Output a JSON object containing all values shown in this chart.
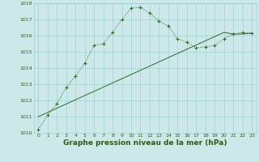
{
  "title": "Graphe pression niveau de la mer (hPa)",
  "x_values": [
    0,
    1,
    2,
    3,
    4,
    5,
    6,
    7,
    8,
    9,
    10,
    11,
    12,
    13,
    14,
    15,
    16,
    17,
    18,
    19,
    20,
    21,
    22,
    23
  ],
  "line1_y": [
    1010.2,
    1011.1,
    1011.8,
    1012.8,
    1013.5,
    1014.3,
    1015.4,
    1015.5,
    1016.2,
    1017.0,
    1017.7,
    1017.75,
    1017.4,
    1016.9,
    1016.6,
    1015.8,
    1015.6,
    1015.25,
    1015.3,
    1015.4,
    1015.8,
    1016.1,
    1016.2,
    1016.15
  ],
  "line2_y": [
    1011.0,
    1011.26,
    1011.52,
    1011.78,
    1012.04,
    1012.3,
    1012.56,
    1012.82,
    1013.08,
    1013.34,
    1013.6,
    1013.86,
    1014.12,
    1014.38,
    1014.64,
    1014.9,
    1015.16,
    1015.42,
    1015.68,
    1015.94,
    1016.2,
    1016.1,
    1016.1,
    1016.15
  ],
  "line_color": "#2d6a2d",
  "bg_color": "#cce8e8",
  "grid_color": "#99cccc",
  "text_color": "#2d5a1b",
  "ylim": [
    1010,
    1018
  ],
  "xlim": [
    -0.5,
    23.5
  ],
  "yticks": [
    1010,
    1011,
    1012,
    1013,
    1014,
    1015,
    1016,
    1017,
    1018
  ],
  "xticks": [
    0,
    1,
    2,
    3,
    4,
    5,
    6,
    7,
    8,
    9,
    10,
    11,
    12,
    13,
    14,
    15,
    16,
    17,
    18,
    19,
    20,
    21,
    22,
    23
  ],
  "fontsize_ticks": 4.5,
  "fontsize_label": 6.5
}
